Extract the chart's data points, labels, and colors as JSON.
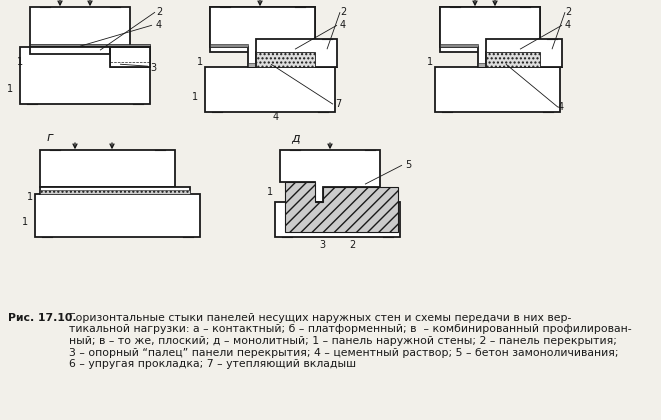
{
  "bg_color": "#f2f0ea",
  "lc": "#1a1a1a",
  "figsize": [
    6.61,
    4.2
  ],
  "dpi": 100,
  "caption_bold": "Рис. 17.10.",
  "caption_text": " Горизонтальные стыки панелей несущих наружных стен и схемы передачи в них вер-\nтикальной нагрузки: а – контактный; б – платформенный; в  – комбинированный профилирован-\nный; в – то же, плоский; д – монолитный; 1 – панель наружной стены; 2 – панель перекрытия;\n3 – опорный “палец” панели перекрытия; 4 – цементный раствор; 5 – бетон замоноличивания;\n6 – упругая прокладка; 7 – утепляющий вкладыш"
}
